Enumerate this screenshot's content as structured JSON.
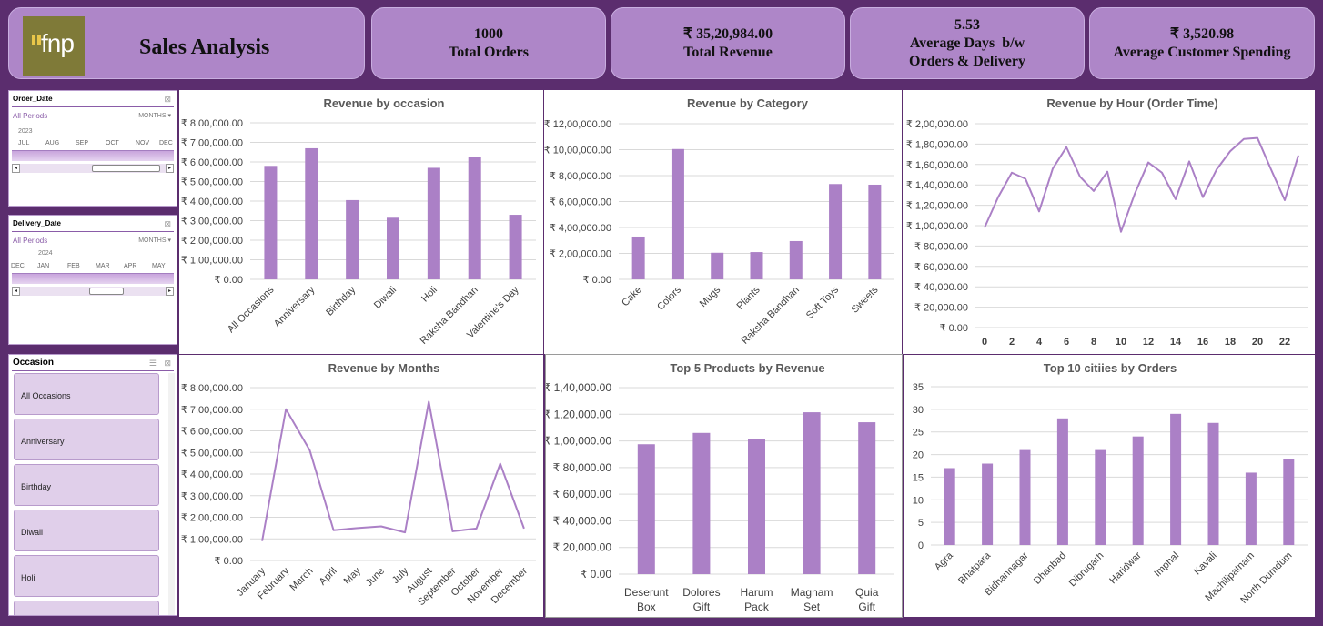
{
  "header": {
    "title": "Sales Analysis",
    "logo_text": "fnp"
  },
  "kpis": [
    {
      "value": "1000",
      "label": "Total Orders"
    },
    {
      "value": "₹ 35,20,984.00",
      "label": "Total Revenue"
    },
    {
      "value": "5.53",
      "label": "Average Days  b/w",
      "label2": "Orders & Delivery"
    },
    {
      "value": "₹ 3,520.98",
      "label": "Average Customer Spending"
    }
  ],
  "slicers": {
    "order_date": {
      "title": "Order_Date",
      "all_periods": "All Periods",
      "mode": "MONTHS",
      "year": "2023",
      "months": [
        "JUL",
        "AUG",
        "SEP",
        "OCT",
        "NOV",
        "DEC"
      ]
    },
    "delivery_date": {
      "title": "Delivery_Date",
      "all_periods": "All Periods",
      "mode": "MONTHS",
      "year": "2024",
      "months": [
        "DEC",
        "JAN",
        "FEB",
        "MAR",
        "APR",
        "MAY"
      ]
    },
    "occasion": {
      "title": "Occasion",
      "items": [
        "All Occasions",
        "Anniversary",
        "Birthday",
        "Diwali",
        "Holi"
      ]
    }
  },
  "colors": {
    "accent": "#ae86c8",
    "background": "#5b2d6e",
    "series": "#ab80c6",
    "grid": "#d9d9d9"
  },
  "chart_data": [
    {
      "type": "bar",
      "title": "Revenue by occasion",
      "categories": [
        "All Occasions",
        "Anniversary",
        "Birthday",
        "Diwali",
        "Holi",
        "Raksha Bandhan",
        "Valentine's Day"
      ],
      "values": [
        580000,
        670000,
        405000,
        315000,
        570000,
        625000,
        330000
      ],
      "ylim": [
        0,
        800000
      ],
      "yticks": [
        "₹ 0.00",
        "₹ 1,00,000.00",
        "₹ 2,00,000.00",
        "₹ 3,00,000.00",
        "₹ 4,00,000.00",
        "₹ 5,00,000.00",
        "₹ 6,00,000.00",
        "₹ 7,00,000.00",
        "₹ 8,00,000.00"
      ]
    },
    {
      "type": "bar",
      "title": "Revenue by Category",
      "categories": [
        "Cake",
        "Colors",
        "Mugs",
        "Plants",
        "Raksha Bandhan",
        "Soft Toys",
        "Sweets"
      ],
      "values": [
        330000,
        1005000,
        205000,
        210000,
        295000,
        735000,
        730000
      ],
      "ylim": [
        0,
        1200000
      ],
      "yticks": [
        "₹ 0.00",
        "₹ 2,00,000.00",
        "₹ 4,00,000.00",
        "₹ 6,00,000.00",
        "₹ 8,00,000.00",
        "₹ 10,00,000.00",
        "₹ 12,00,000.00"
      ]
    },
    {
      "type": "line",
      "title": "Revenue by Hour (Order Time)",
      "x": [
        0,
        1,
        2,
        3,
        4,
        5,
        6,
        7,
        8,
        9,
        10,
        11,
        12,
        13,
        14,
        15,
        16,
        17,
        18,
        19,
        20,
        21,
        22,
        23
      ],
      "values": [
        98000,
        128000,
        152000,
        146000,
        114000,
        156000,
        177000,
        148000,
        134000,
        153000,
        94000,
        131000,
        162000,
        152000,
        126000,
        163000,
        128000,
        155000,
        173000,
        185000,
        186000,
        155000,
        125000,
        169000
      ],
      "ylim": [
        0,
        200000
      ],
      "xticks": [
        "0",
        "2",
        "4",
        "6",
        "8",
        "10",
        "12",
        "14",
        "16",
        "18",
        "20",
        "22"
      ],
      "yticks": [
        "₹ 0.00",
        "₹ 20,000.00",
        "₹ 40,000.00",
        "₹ 60,000.00",
        "₹ 80,000.00",
        "₹ 1,00,000.00",
        "₹ 1,20,000.00",
        "₹ 1,40,000.00",
        "₹ 1,60,000.00",
        "₹ 1,80,000.00",
        "₹ 2,00,000.00"
      ]
    },
    {
      "type": "line",
      "title": "Revenue by Months",
      "categories": [
        "January",
        "February",
        "March",
        "April",
        "May",
        "June",
        "July",
        "August",
        "September",
        "October",
        "November",
        "December"
      ],
      "values": [
        90000,
        700000,
        510000,
        140000,
        150000,
        158000,
        130000,
        735000,
        135000,
        148000,
        448000,
        148000
      ],
      "ylim": [
        0,
        800000
      ],
      "yticks": [
        "₹ 0.00",
        "₹ 1,00,000.00",
        "₹ 2,00,000.00",
        "₹ 3,00,000.00",
        "₹ 4,00,000.00",
        "₹ 5,00,000.00",
        "₹ 6,00,000.00",
        "₹ 7,00,000.00",
        "₹ 8,00,000.00"
      ]
    },
    {
      "type": "bar",
      "title": "Top  5 Products by Revenue",
      "categories": [
        "Deserunt Box",
        "Dolores Gift",
        "Harum Pack",
        "Magnam Set",
        "Quia Gift"
      ],
      "values": [
        97500,
        106000,
        101500,
        121500,
        114000
      ],
      "ylim": [
        0,
        140000
      ],
      "yticks": [
        "₹ 0.00",
        "₹ 20,000.00",
        "₹ 40,000.00",
        "₹ 60,000.00",
        "₹ 80,000.00",
        "₹ 1,00,000.00",
        "₹ 1,20,000.00",
        "₹ 1,40,000.00"
      ]
    },
    {
      "type": "bar",
      "title": "Top 10 citiies by Orders",
      "categories": [
        "Agra",
        "Bhatpara",
        "Bidhannagar",
        "Dhanbad",
        "Dibrugarh",
        "Haridwar",
        "Imphal",
        "Kavali",
        "Machilipatnam",
        "North Dumdum"
      ],
      "values": [
        17,
        18,
        21,
        28,
        21,
        24,
        29,
        27,
        16,
        19
      ],
      "ylim": [
        0,
        35
      ],
      "yticks": [
        "0",
        "5",
        "10",
        "15",
        "20",
        "25",
        "30",
        "35"
      ]
    }
  ]
}
